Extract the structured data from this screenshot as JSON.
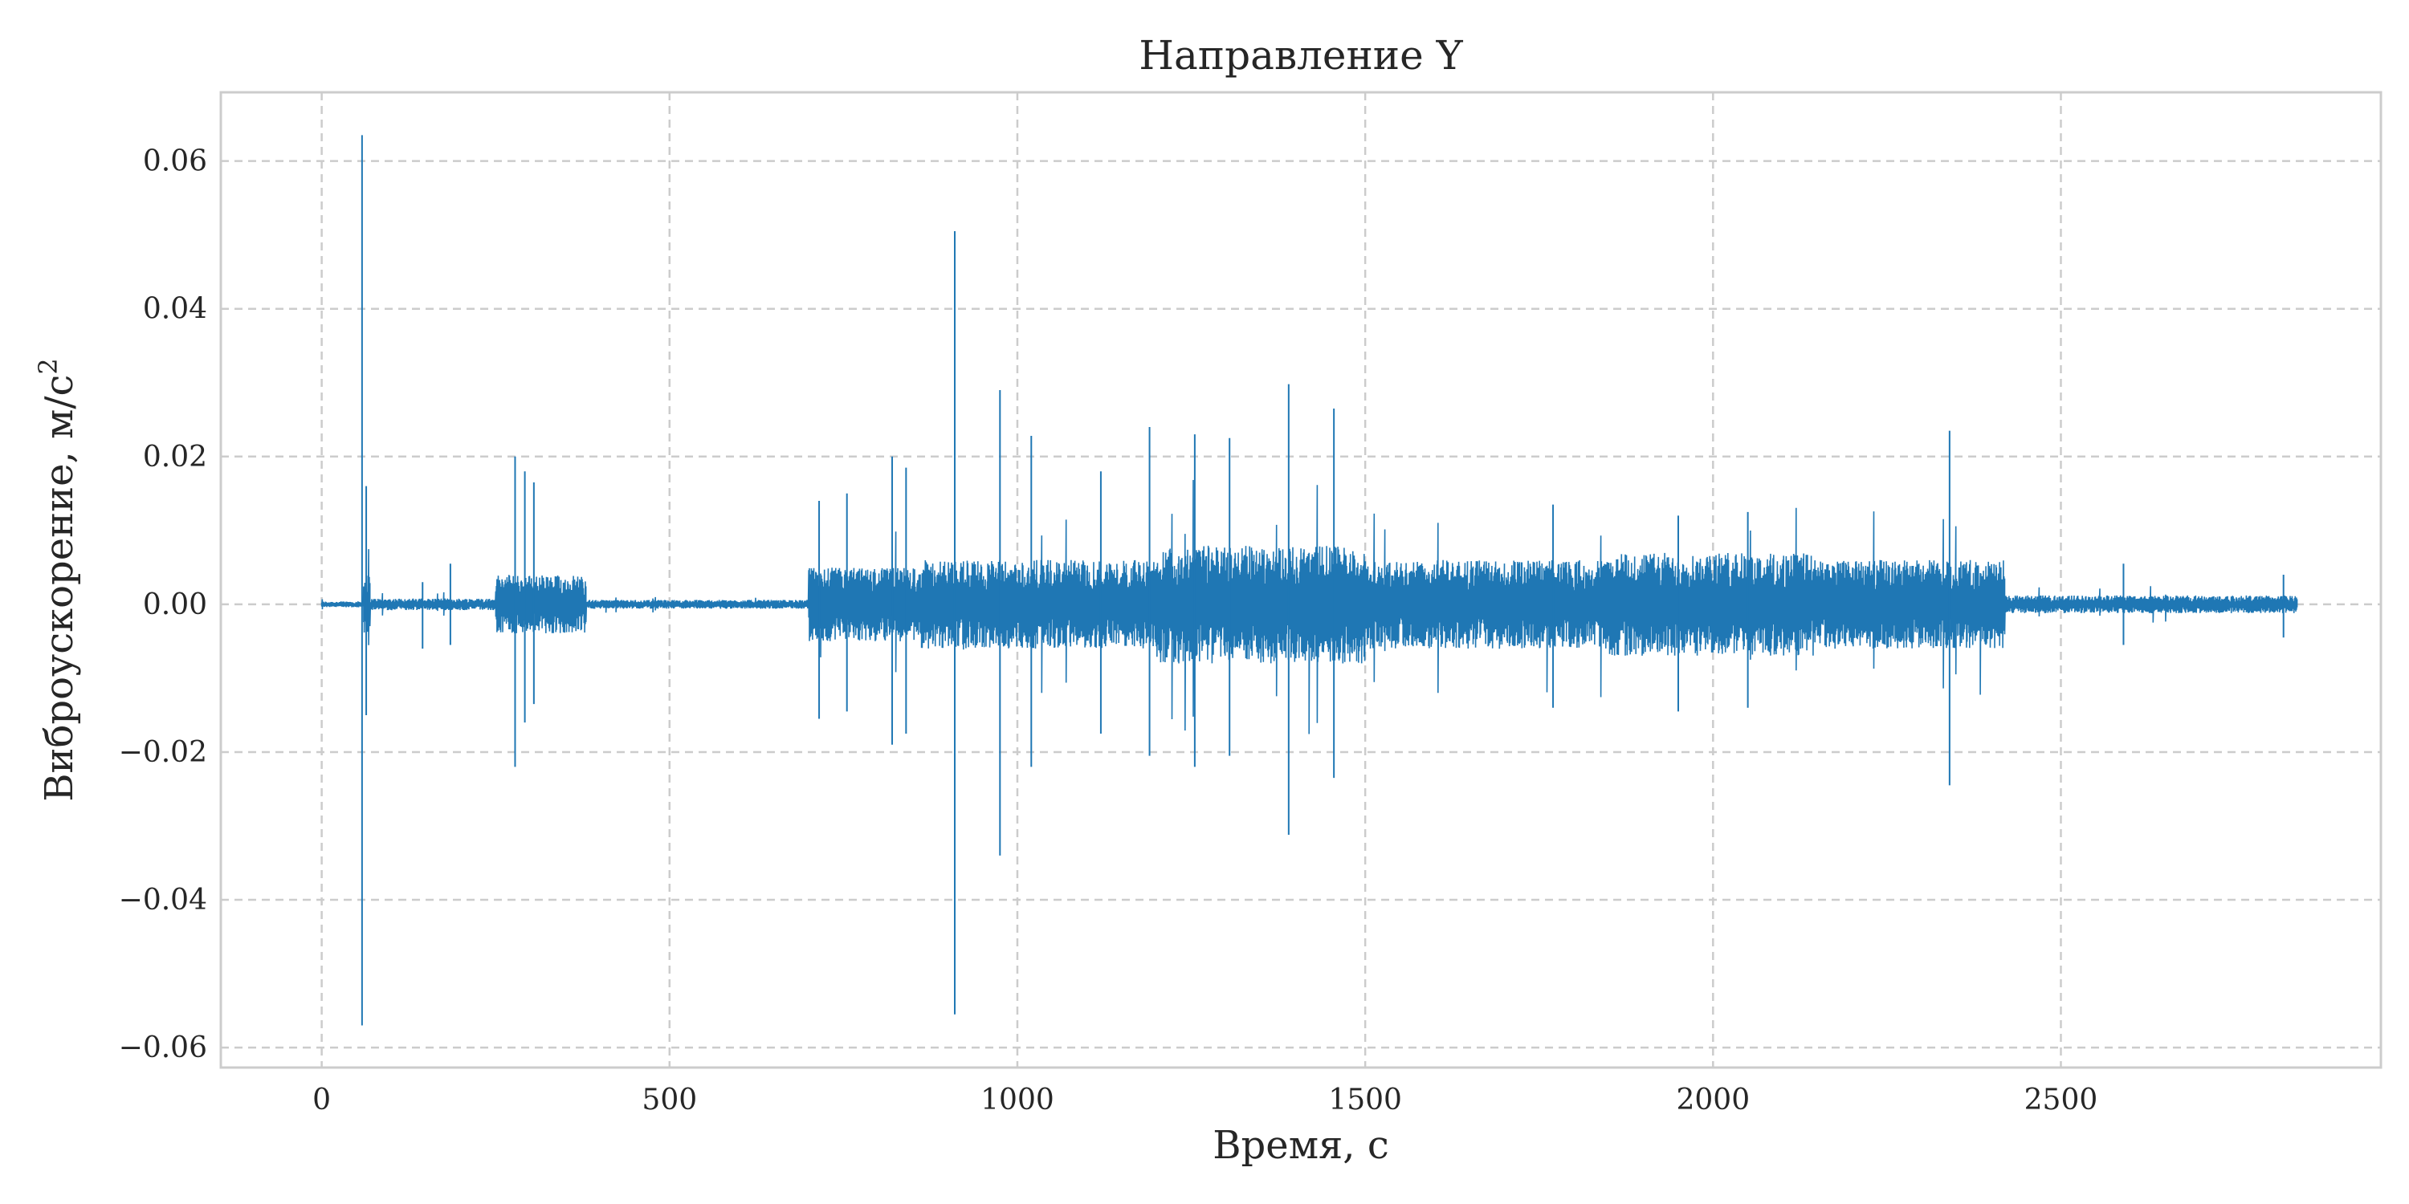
{
  "chart_data": {
    "type": "line",
    "title": "Направление Y",
    "xlabel": "Время,  с",
    "ylabel": "Виброускорение,  м/с",
    "ylabel_superscript": "2",
    "xlim": [
      -145,
      2960
    ],
    "ylim": [
      -0.0627,
      0.0693
    ],
    "x_ticks": [
      0,
      500,
      1000,
      1500,
      2000,
      2500
    ],
    "x_tick_labels": [
      "0",
      "500",
      "1000",
      "1500",
      "2000",
      "2500"
    ],
    "y_ticks": [
      -0.06,
      -0.04,
      -0.02,
      0.0,
      0.02,
      0.04,
      0.06
    ],
    "y_tick_labels": [
      "−0.06",
      "−0.04",
      "−0.02",
      "0.00",
      "0.02",
      "0.04",
      "0.06"
    ],
    "grid": true,
    "series": [
      {
        "color": "#1f77b4",
        "x_start": 0,
        "x_end": 2840,
        "envelope_segments": [
          {
            "x0": 0,
            "x1": 60,
            "amp": 0.0004
          },
          {
            "x0": 60,
            "x1": 70,
            "amp": 0.004
          },
          {
            "x0": 70,
            "x1": 250,
            "amp": 0.0008
          },
          {
            "x0": 250,
            "x1": 380,
            "amp": 0.004
          },
          {
            "x0": 380,
            "x1": 700,
            "amp": 0.0006
          },
          {
            "x0": 700,
            "x1": 860,
            "amp": 0.005
          },
          {
            "x0": 860,
            "x1": 1200,
            "amp": 0.006
          },
          {
            "x0": 1200,
            "x1": 1500,
            "amp": 0.008
          },
          {
            "x0": 1500,
            "x1": 1850,
            "amp": 0.006
          },
          {
            "x0": 1850,
            "x1": 2150,
            "amp": 0.007
          },
          {
            "x0": 2150,
            "x1": 2420,
            "amp": 0.006
          },
          {
            "x0": 2420,
            "x1": 2840,
            "amp": 0.0012
          }
        ],
        "spikes": [
          {
            "x": 58,
            "max": 0.0635,
            "min": -0.057
          },
          {
            "x": 64,
            "max": 0.016,
            "min": -0.015
          },
          {
            "x": 145,
            "max": 0.003,
            "min": -0.006
          },
          {
            "x": 185,
            "max": 0.0055,
            "min": -0.0055
          },
          {
            "x": 278,
            "max": 0.02,
            "min": -0.022
          },
          {
            "x": 292,
            "max": 0.018,
            "min": -0.016
          },
          {
            "x": 305,
            "max": 0.0165,
            "min": -0.0135
          },
          {
            "x": 715,
            "max": 0.014,
            "min": -0.0155
          },
          {
            "x": 755,
            "max": 0.015,
            "min": -0.0145
          },
          {
            "x": 820,
            "max": 0.02,
            "min": -0.019
          },
          {
            "x": 840,
            "max": 0.0185,
            "min": -0.0175
          },
          {
            "x": 910,
            "max": 0.0505,
            "min": -0.0555
          },
          {
            "x": 975,
            "max": 0.029,
            "min": -0.034
          },
          {
            "x": 1020,
            "max": 0.0228,
            "min": -0.022
          },
          {
            "x": 1120,
            "max": 0.018,
            "min": -0.0175
          },
          {
            "x": 1190,
            "max": 0.024,
            "min": -0.0205
          },
          {
            "x": 1255,
            "max": 0.023,
            "min": -0.022
          },
          {
            "x": 1305,
            "max": 0.0225,
            "min": -0.0205
          },
          {
            "x": 1390,
            "max": 0.0298,
            "min": -0.0312
          },
          {
            "x": 1455,
            "max": 0.0265,
            "min": -0.0235
          },
          {
            "x": 1770,
            "max": 0.0135,
            "min": -0.014
          },
          {
            "x": 1950,
            "max": 0.012,
            "min": -0.0145
          },
          {
            "x": 2050,
            "max": 0.0125,
            "min": -0.014
          },
          {
            "x": 2340,
            "max": 0.0235,
            "min": -0.0245
          },
          {
            "x": 2590,
            "max": 0.0055,
            "min": -0.0055
          },
          {
            "x": 2820,
            "max": 0.004,
            "min": -0.0045
          }
        ]
      }
    ]
  }
}
